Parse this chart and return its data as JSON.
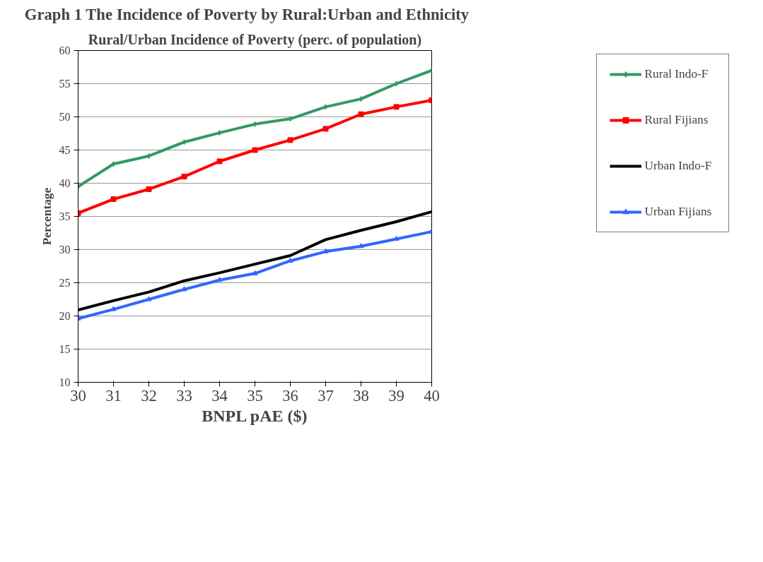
{
  "chart_data": {
    "type": "line",
    "title": "Graph 1     The Incidence of Poverty by Rural:Urban and Ethnicity",
    "subtitle": "Rural/Urban Incidence of Poverty (perc. of population)",
    "xlabel": "BNPL pAE ($)",
    "ylabel": "Percentage",
    "x": [
      30,
      31,
      32,
      33,
      34,
      35,
      36,
      37,
      38,
      39,
      40
    ],
    "xlim": [
      30,
      40
    ],
    "xticks": [
      30,
      31,
      32,
      33,
      34,
      35,
      36,
      37,
      38,
      39,
      40
    ],
    "ylim": [
      10,
      60
    ],
    "yticks": [
      10,
      15,
      20,
      25,
      30,
      35,
      40,
      45,
      50,
      55,
      60
    ],
    "grid": "y",
    "legend": "right",
    "series": [
      {
        "name": "Rural Indo-F",
        "color": "#339966",
        "marker": "diamond",
        "values": [
          39.5,
          42.9,
          44.1,
          46.2,
          47.6,
          48.9,
          49.7,
          51.5,
          52.7,
          55,
          57
        ]
      },
      {
        "name": "Rural Fijians",
        "color": "#ff0000",
        "marker": "square",
        "values": [
          35.5,
          37.6,
          39.1,
          41,
          43.3,
          45,
          46.5,
          48.2,
          50.4,
          51.5,
          52.5
        ]
      },
      {
        "name": "Urban Indo-F",
        "color": "#000000",
        "marker": "none",
        "values": [
          20.9,
          22.3,
          23.6,
          25.3,
          26.5,
          27.8,
          29.1,
          31.5,
          32.9,
          34.2,
          35.7
        ]
      },
      {
        "name": "Urban Fijians",
        "color": "#3366ff",
        "marker": "triangle",
        "values": [
          19.6,
          21,
          22.5,
          24,
          25.4,
          26.4,
          28.3,
          29.7,
          30.5,
          31.6,
          32.7
        ]
      }
    ]
  }
}
